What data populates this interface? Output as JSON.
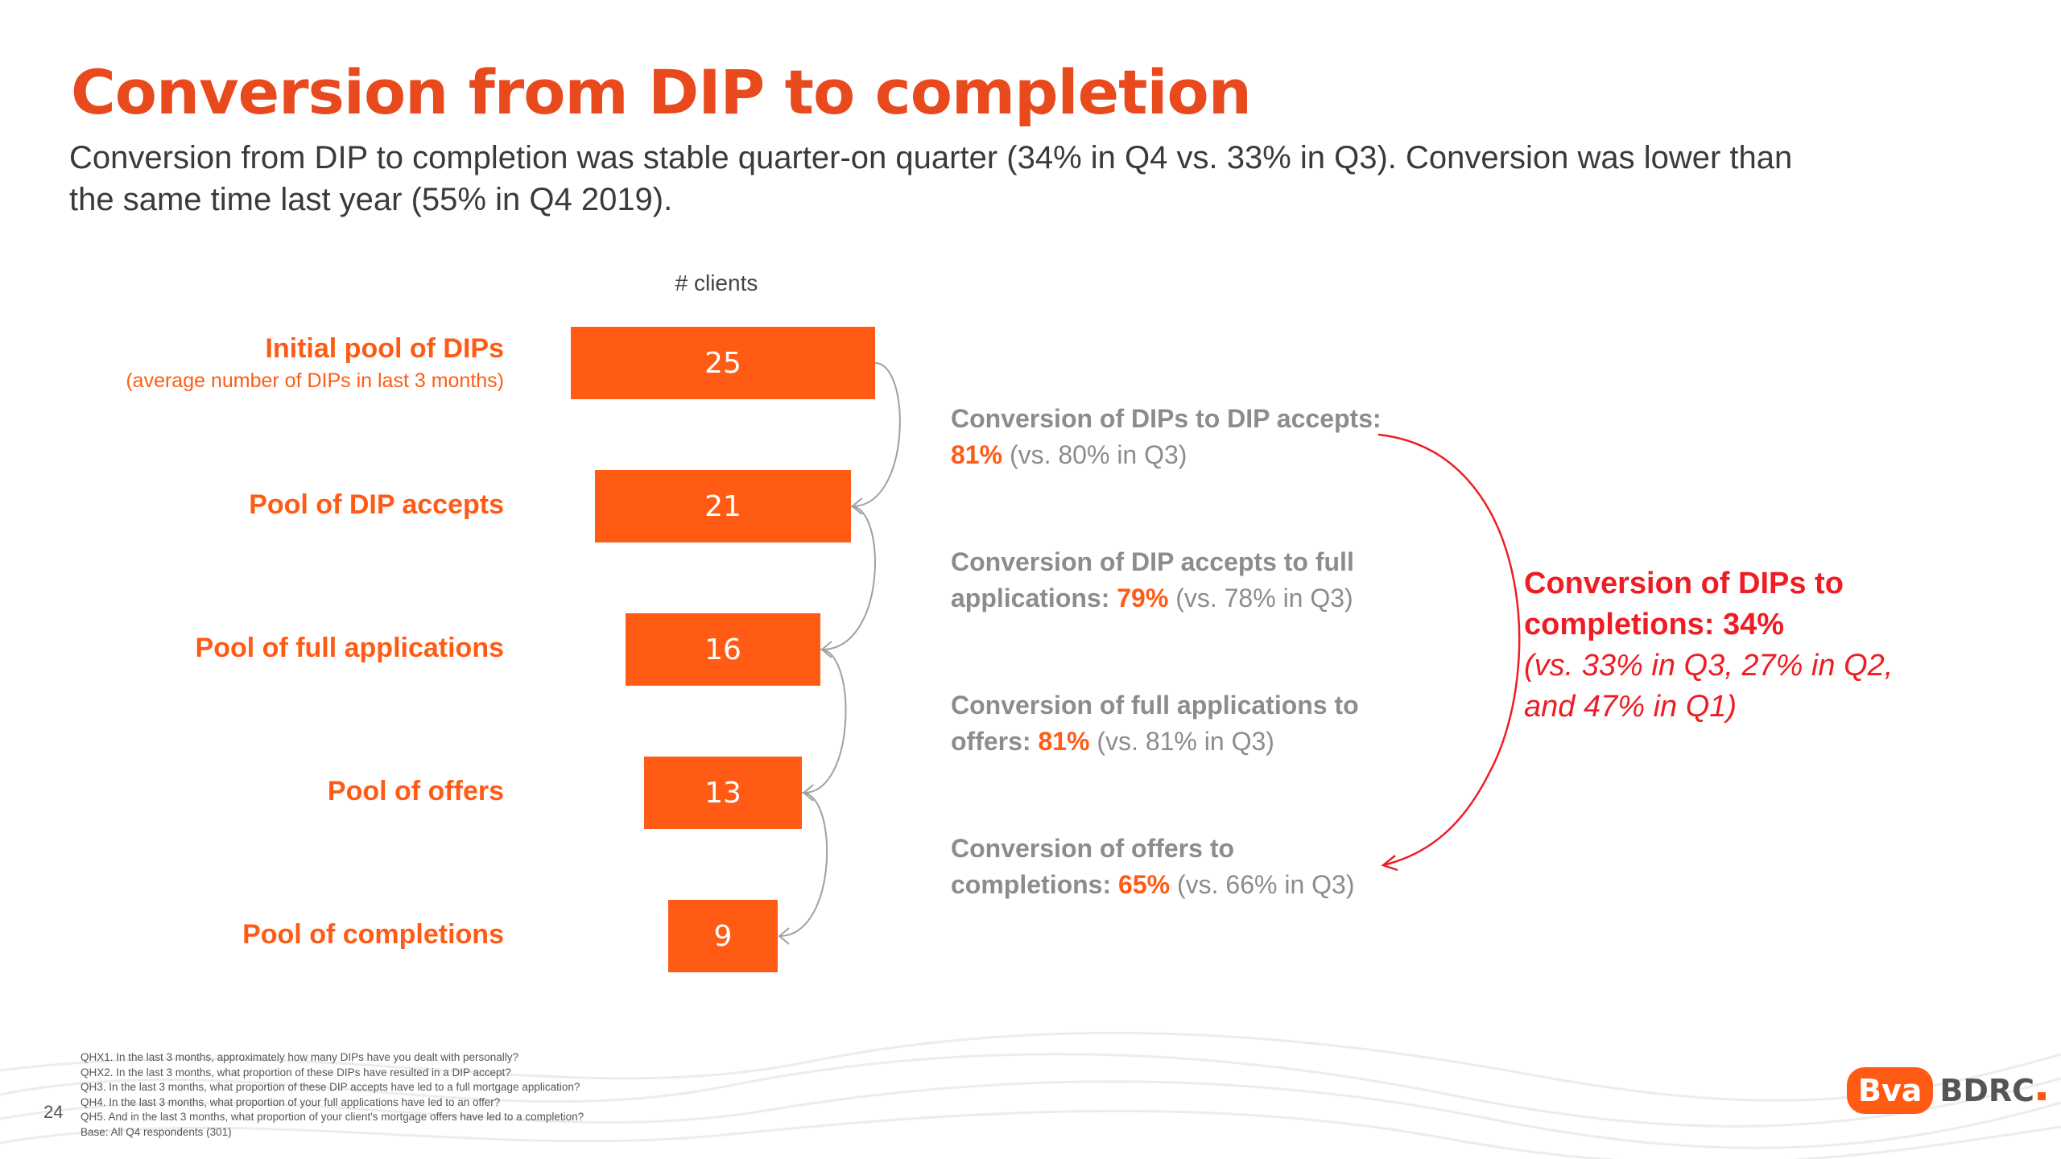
{
  "page": {
    "title": "Conversion from DIP to completion",
    "subtitle": "Conversion from DIP to completion was stable quarter-on quarter (34% in Q4 vs. 33% in Q3). Conversion was lower than the same time last year (55% in Q4 2019).",
    "page_number": "24"
  },
  "colors": {
    "accent": "#ff5b14",
    "title": "#e8491d",
    "overall": "#ee1d23",
    "muted": "#8c8c8c"
  },
  "chart_data": {
    "type": "bar",
    "orientation": "horizontal-centered funnel",
    "axis_label": "# clients",
    "categories": [
      "Initial pool of DIPs",
      "Pool of DIP accepts",
      "Pool of full applications",
      "Pool of offers",
      "Pool of completions"
    ],
    "category_sublabels": [
      "(average number of DIPs in last 3 months)",
      "",
      "",
      "",
      ""
    ],
    "values": [
      25,
      21,
      16,
      13,
      9
    ],
    "conversions": [
      {
        "prefix": "Conversion of DIPs to DIP accepts: ",
        "value": "81%",
        "suffix": " (vs. 80% in Q3)"
      },
      {
        "prefix": "Conversion of DIP accepts to full applications: ",
        "value": "79%",
        "suffix": " (vs. 78% in Q3)"
      },
      {
        "prefix": "Conversion of full applications to offers: ",
        "value": "81%",
        "suffix": " (vs. 81% in Q3)"
      },
      {
        "prefix": "Conversion of offers to completions: ",
        "value": "65%",
        "suffix": " (vs. 66% in Q3)"
      }
    ],
    "overall": {
      "title": "Conversion of DIPs to completions: 34%",
      "comparison": "(vs. 33% in Q3,  27% in Q2, and 47% in Q1)"
    }
  },
  "footnotes": [
    "QHX1. In the last 3 months, approximately how many DIPs have you dealt with personally?",
    "QHX2. In the last 3 months, what proportion of these DIPs have resulted in a DIP accept?",
    "QH3. In the last 3 months, what proportion of these DIP accepts have led to a full mortgage application?",
    "QH4. In the last 3 months, what proportion of your full applications have led to an offer?",
    "QH5. And in the last 3 months, what proportion of your client's mortgage offers have led to a completion?",
    "Base: All Q4 respondents (301)"
  ],
  "logo": {
    "left": "Bva",
    "right": "BDRC"
  }
}
